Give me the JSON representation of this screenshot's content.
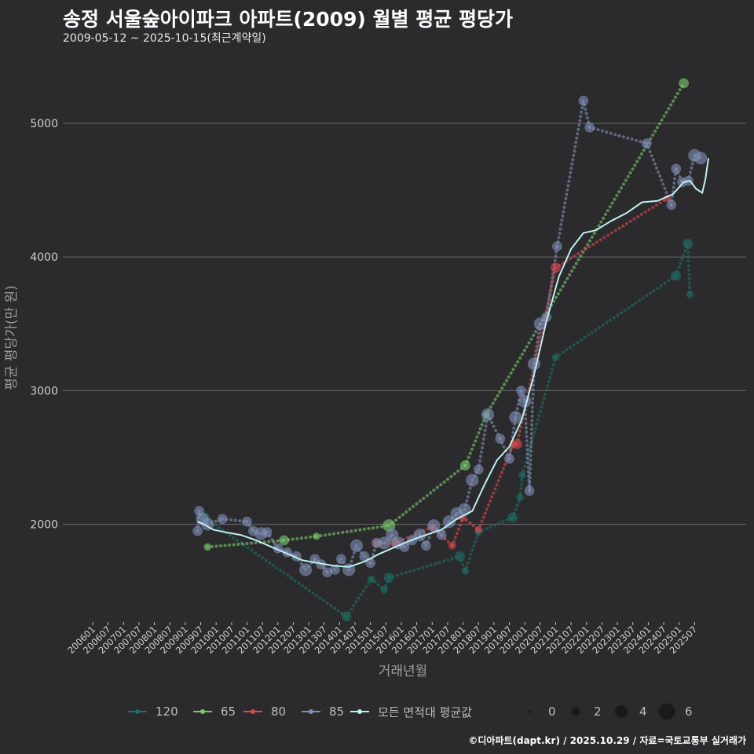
{
  "header": {
    "title": "송정 서울숲아이파크 아파트(2009) 월별 평균 평당가",
    "subtitle": "2009-05-12 ~ 2025-10-15(최근계약일)"
  },
  "footer": {
    "credit": "©디아파트(dapt.kr) / 2025.10.29 / 자료=국토교통부 실거래가"
  },
  "chart_data": {
    "type": "line",
    "title": "송정 서울숲아이파크 아파트(2009) 월별 평균 평당가",
    "xlabel": "거래년월",
    "ylabel": "평균 평당가(만 원)",
    "x_range": [
      2006.0,
      2025.95
    ],
    "ylim": [
      1280,
      5500
    ],
    "y_ticks": [
      2000,
      3000,
      4000,
      5000
    ],
    "y_tick_labels": [
      "2000",
      "3000",
      "4000",
      "5000"
    ],
    "x_ticks": [
      "200601",
      "200607",
      "200701",
      "200707",
      "200801",
      "200807",
      "200901",
      "200907",
      "201001",
      "201007",
      "201101",
      "201107",
      "201201",
      "201207",
      "201301",
      "201307",
      "201401",
      "201407",
      "201501",
      "201507",
      "201601",
      "201607",
      "201701",
      "201707",
      "201801",
      "201807",
      "201901",
      "201907",
      "202001",
      "202007",
      "202101",
      "202107",
      "202201",
      "202207",
      "202301",
      "202307",
      "202401",
      "202407",
      "202501",
      "202507"
    ],
    "grid": true,
    "legend_position": "bottom",
    "series": [
      {
        "name": "120",
        "color": "#1f6f66",
        "points": [
          [
            2009.63,
            2050,
            2
          ],
          [
            2014.22,
            1310,
            2
          ],
          [
            2015.03,
            1590,
            1
          ],
          [
            2015.45,
            1510,
            1
          ],
          [
            2015.6,
            1600,
            2
          ],
          [
            2017.9,
            1760,
            2
          ],
          [
            2018.07,
            1650,
            1
          ],
          [
            2018.5,
            1940,
            1
          ],
          [
            2019.6,
            2050,
            2
          ],
          [
            2019.85,
            2200,
            1
          ],
          [
            2019.92,
            2370,
            1
          ],
          [
            2021.0,
            3250,
            1
          ],
          [
            2024.9,
            3860,
            2
          ],
          [
            2025.28,
            4100,
            2
          ],
          [
            2025.35,
            3720,
            1
          ]
        ]
      },
      {
        "name": "65",
        "color": "#7bc96f",
        "points": [
          [
            2009.72,
            1830,
            1
          ],
          [
            2012.2,
            1880,
            2
          ],
          [
            2013.25,
            1910,
            1
          ],
          [
            2015.6,
            1990,
            3
          ],
          [
            2018.07,
            2440,
            2
          ],
          [
            2018.75,
            2820,
            1
          ],
          [
            2025.15,
            5300,
            2
          ]
        ]
      },
      {
        "name": "80",
        "color": "#d64a4f",
        "points": [
          [
            2015.2,
            1860,
            1
          ],
          [
            2015.8,
            1860,
            2
          ],
          [
            2017.0,
            1980,
            1
          ],
          [
            2017.65,
            1840,
            1
          ],
          [
            2018.0,
            2050,
            1
          ],
          [
            2018.5,
            1960,
            1
          ],
          [
            2019.63,
            2600,
            1
          ],
          [
            2019.75,
            2600,
            2
          ],
          [
            2021.0,
            3920,
            2
          ],
          [
            2024.63,
            4440,
            1
          ]
        ]
      },
      {
        "name": "85",
        "color": "#7f8fb5",
        "points": [
          [
            2009.4,
            1950,
            2
          ],
          [
            2009.45,
            2100,
            2
          ],
          [
            2009.55,
            2040,
            3
          ],
          [
            2009.72,
            2000,
            3
          ],
          [
            2010.2,
            2040,
            2
          ],
          [
            2011.0,
            2020,
            2
          ],
          [
            2011.2,
            1950,
            2
          ],
          [
            2011.45,
            1930,
            3
          ],
          [
            2011.65,
            1940,
            2
          ],
          [
            2012.0,
            1820,
            2
          ],
          [
            2012.3,
            1790,
            2
          ],
          [
            2012.6,
            1760,
            2
          ],
          [
            2012.9,
            1660,
            3
          ],
          [
            2013.2,
            1740,
            2
          ],
          [
            2013.4,
            1700,
            2
          ],
          [
            2013.6,
            1640,
            2
          ],
          [
            2013.85,
            1660,
            2
          ],
          [
            2014.05,
            1740,
            2
          ],
          [
            2014.3,
            1660,
            3
          ],
          [
            2014.55,
            1840,
            3
          ],
          [
            2014.8,
            1760,
            2
          ],
          [
            2015.0,
            1710,
            2
          ],
          [
            2015.2,
            1860,
            2
          ],
          [
            2015.45,
            1860,
            3
          ],
          [
            2015.7,
            1920,
            3
          ],
          [
            2015.9,
            1860,
            3
          ],
          [
            2016.1,
            1830,
            2
          ],
          [
            2016.35,
            1880,
            2
          ],
          [
            2016.6,
            1920,
            3
          ],
          [
            2016.8,
            1840,
            2
          ],
          [
            2017.05,
            1990,
            3
          ],
          [
            2017.3,
            1920,
            2
          ],
          [
            2017.55,
            2020,
            3
          ],
          [
            2017.8,
            2080,
            3
          ],
          [
            2018.05,
            2110,
            3
          ],
          [
            2018.3,
            2330,
            3
          ],
          [
            2018.5,
            2410,
            2
          ],
          [
            2018.8,
            2820,
            3
          ],
          [
            2019.2,
            2640,
            2
          ],
          [
            2019.5,
            2490,
            2
          ],
          [
            2019.7,
            2800,
            3
          ],
          [
            2019.88,
            3000,
            2
          ],
          [
            2020.0,
            2920,
            3
          ],
          [
            2020.15,
            2250,
            2
          ],
          [
            2020.3,
            3200,
            3
          ],
          [
            2020.5,
            3500,
            3
          ],
          [
            2020.7,
            3550,
            2
          ],
          [
            2021.05,
            4080,
            2
          ],
          [
            2021.9,
            5170,
            2
          ],
          [
            2022.1,
            4970,
            2
          ],
          [
            2023.95,
            4850,
            2
          ],
          [
            2024.75,
            4390,
            2
          ],
          [
            2024.9,
            4660,
            2
          ],
          [
            2025.1,
            4560,
            2
          ],
          [
            2025.3,
            4570,
            2
          ],
          [
            2025.5,
            4760,
            3
          ],
          [
            2025.7,
            4740,
            3
          ]
        ]
      },
      {
        "name": "모든 면적대 평균값",
        "color": "#bdf0ee",
        "points": [
          [
            2009.4,
            2020
          ],
          [
            2009.6,
            2000
          ],
          [
            2009.9,
            1960
          ],
          [
            2010.3,
            1940
          ],
          [
            2010.8,
            1920
          ],
          [
            2011.3,
            1880
          ],
          [
            2011.8,
            1830
          ],
          [
            2012.3,
            1780
          ],
          [
            2012.8,
            1730
          ],
          [
            2013.3,
            1710
          ],
          [
            2013.8,
            1690
          ],
          [
            2014.3,
            1680
          ],
          [
            2014.8,
            1720
          ],
          [
            2015.3,
            1780
          ],
          [
            2015.8,
            1830
          ],
          [
            2016.3,
            1880
          ],
          [
            2016.8,
            1920
          ],
          [
            2017.3,
            1960
          ],
          [
            2017.8,
            2040
          ],
          [
            2018.3,
            2100
          ],
          [
            2018.7,
            2300
          ],
          [
            2019.1,
            2480
          ],
          [
            2019.5,
            2580
          ],
          [
            2019.9,
            2780
          ],
          [
            2020.3,
            3120
          ],
          [
            2020.7,
            3520
          ],
          [
            2021.1,
            3850
          ],
          [
            2021.5,
            4060
          ],
          [
            2021.9,
            4180
          ],
          [
            2022.3,
            4200
          ],
          [
            2022.8,
            4270
          ],
          [
            2023.3,
            4330
          ],
          [
            2023.8,
            4410
          ],
          [
            2024.3,
            4420
          ],
          [
            2024.8,
            4470
          ],
          [
            2025.15,
            4560
          ],
          [
            2025.35,
            4570
          ],
          [
            2025.55,
            4510
          ],
          [
            2025.75,
            4480
          ],
          [
            2025.85,
            4580
          ],
          [
            2025.95,
            4740
          ]
        ]
      }
    ],
    "size_legend": {
      "values": [
        0,
        2,
        4,
        6
      ],
      "labels": [
        "0",
        "2",
        "4",
        "6"
      ]
    }
  }
}
